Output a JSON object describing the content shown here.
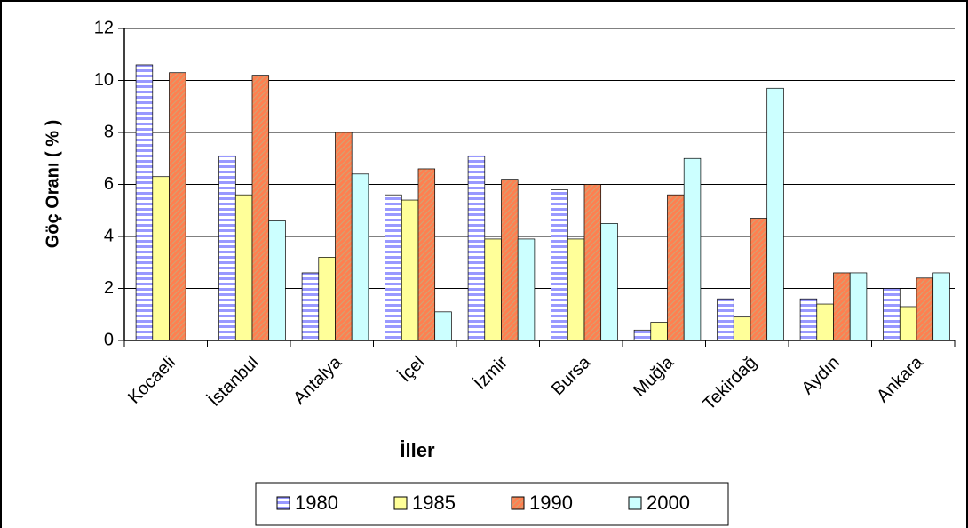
{
  "chart_data": {
    "type": "bar",
    "xlabel": "İller",
    "ylabel": "Göç Oranı ( % )",
    "categories": [
      "Kocaeli",
      "İstanbul",
      "Antalya",
      "İçel",
      "İzmir",
      "Bursa",
      "Muğla",
      "Tekirdağ",
      "Aydın",
      "Ankara"
    ],
    "series": [
      {
        "name": "1980",
        "color": "#9999ff",
        "pattern": "horizontal-stripes",
        "values": [
          10.6,
          7.1,
          2.6,
          5.6,
          7.1,
          5.8,
          0.4,
          1.6,
          1.6,
          2.0
        ]
      },
      {
        "name": "1985",
        "color": "#ffff99",
        "values": [
          6.3,
          5.6,
          3.2,
          5.4,
          3.9,
          3.9,
          0.7,
          0.9,
          1.4,
          1.3
        ]
      },
      {
        "name": "1990",
        "color": "#ff7f50",
        "pattern": "diagonal-hatch",
        "values": [
          10.3,
          10.2,
          8.0,
          6.6,
          6.2,
          6.0,
          5.6,
          4.7,
          2.6,
          2.4
        ]
      },
      {
        "name": "2000",
        "color": "#ccffff",
        "values": [
          null,
          4.6,
          6.4,
          1.1,
          3.9,
          4.5,
          7.0,
          9.7,
          2.6,
          2.6
        ]
      }
    ],
    "ylim": [
      0,
      12
    ],
    "yticks": [
      0,
      2,
      4,
      6,
      8,
      10,
      12
    ],
    "grid": true,
    "legend": "bottom"
  }
}
